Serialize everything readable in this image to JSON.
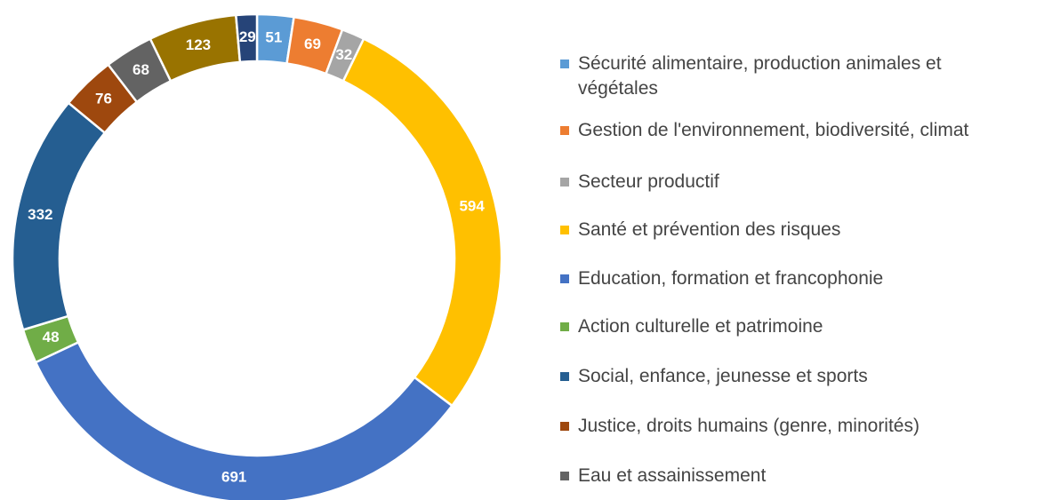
{
  "chart_data": {
    "type": "donut",
    "categories": [
      "Sécurité alimentaire, production animales et végétales",
      "Gestion de l'environnement, biodiversité, climat",
      "Secteur productif",
      "Santé et prévention des risques",
      "Education, formation et francophonie",
      "Action culturelle et patrimoine",
      "Social, enfance, jeunesse et sports",
      "Justice, droits humains (genre, minorités)",
      "Eau et assainissement",
      null,
      null
    ],
    "values": [
      51,
      69,
      32,
      594,
      691,
      48,
      332,
      76,
      68,
      123,
      29
    ],
    "colors": [
      "#5b9bd5",
      "#ed7d31",
      "#a5a5a5",
      "#ffc000",
      "#4472c4",
      "#70ad47",
      "#255e91",
      "#9e480e",
      "#636363",
      "#997300",
      "#264478"
    ],
    "legend": "right"
  }
}
